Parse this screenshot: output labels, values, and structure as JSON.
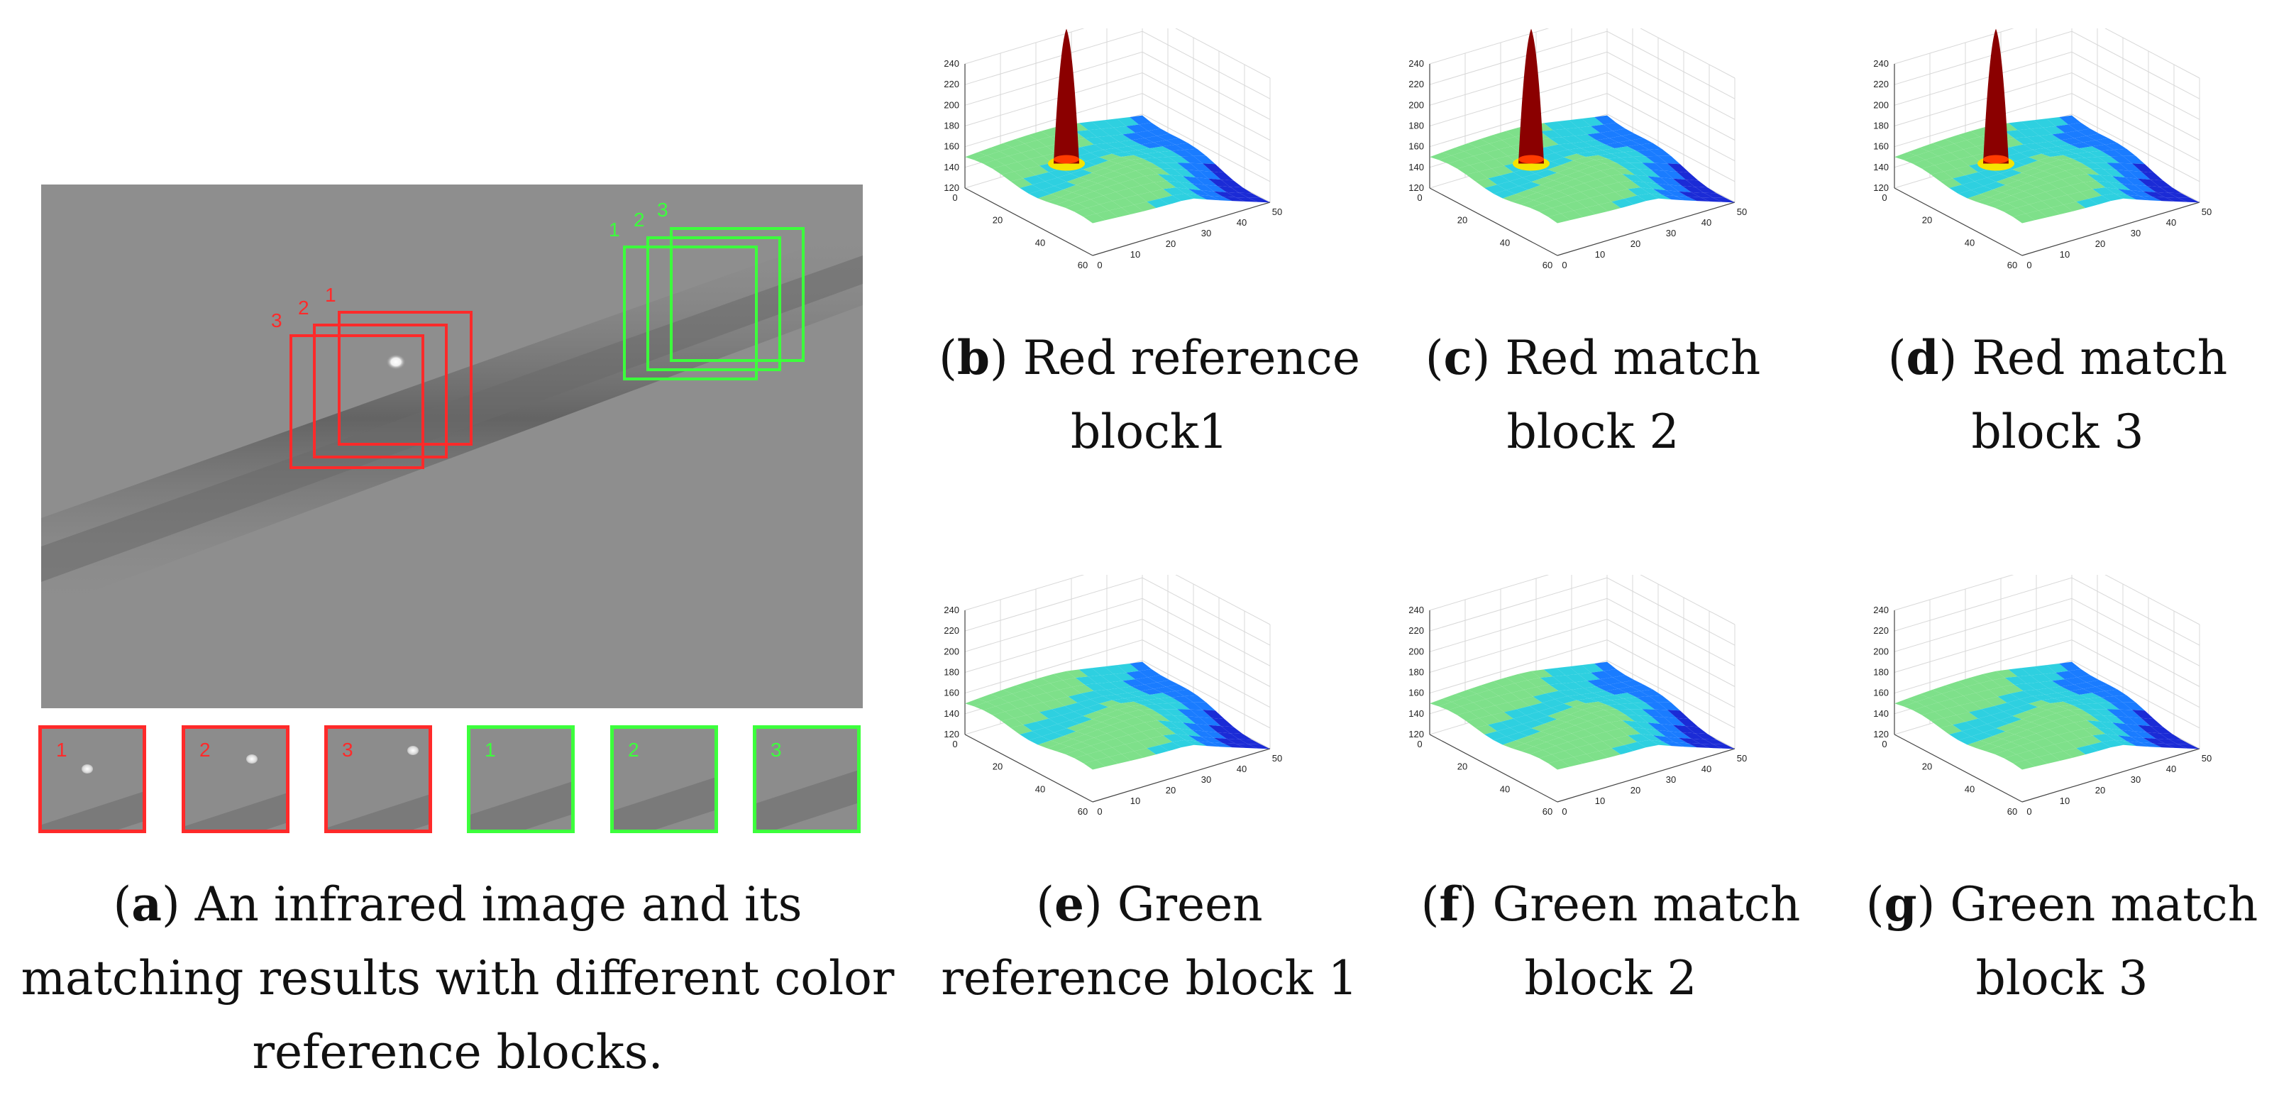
{
  "figure": {
    "panel_a": {
      "label": "a",
      "caption_line1": "An infrared image and its",
      "caption_line2": "matching results with different color",
      "caption_line3": "reference blocks.",
      "red_block_labels": [
        "1",
        "2",
        "3"
      ],
      "green_block_labels": [
        "1",
        "2",
        "3"
      ],
      "thumbnails": [
        {
          "label": "1",
          "color": "red",
          "has_target": true
        },
        {
          "label": "2",
          "color": "red",
          "has_target": true
        },
        {
          "label": "3",
          "color": "red",
          "has_target": true
        },
        {
          "label": "1",
          "color": "green",
          "has_target": false
        },
        {
          "label": "2",
          "color": "green",
          "has_target": false
        },
        {
          "label": "3",
          "color": "green",
          "has_target": false
        }
      ],
      "colors": {
        "red": "#ff2a2a",
        "green": "#3cff3c",
        "background": "#8c8c8c"
      }
    },
    "surface_plots": [
      {
        "id": "b",
        "label": "b",
        "line1": "Red reference",
        "line2": "block1",
        "peak": true
      },
      {
        "id": "c",
        "label": "c",
        "line1": "Red match",
        "line2": "block 2",
        "peak": true
      },
      {
        "id": "d",
        "label": "d",
        "line1": "Red match",
        "line2": "block 3",
        "peak": true
      },
      {
        "id": "e",
        "label": "e",
        "line1": "Green",
        "line2": "reference block 1",
        "peak": false
      },
      {
        "id": "f",
        "label": "f",
        "line1": "Green match",
        "line2": "block 2",
        "peak": false
      },
      {
        "id": "g",
        "label": "g",
        "line1": "Green match",
        "line2": "block 3",
        "peak": false
      }
    ],
    "axes": {
      "z_ticks": [
        "120",
        "140",
        "160",
        "180",
        "200",
        "220",
        "240"
      ],
      "x_ticks": [
        "0",
        "20",
        "40",
        "60"
      ],
      "y_ticks": [
        "0",
        "10",
        "20",
        "30",
        "40",
        "50"
      ]
    }
  }
}
